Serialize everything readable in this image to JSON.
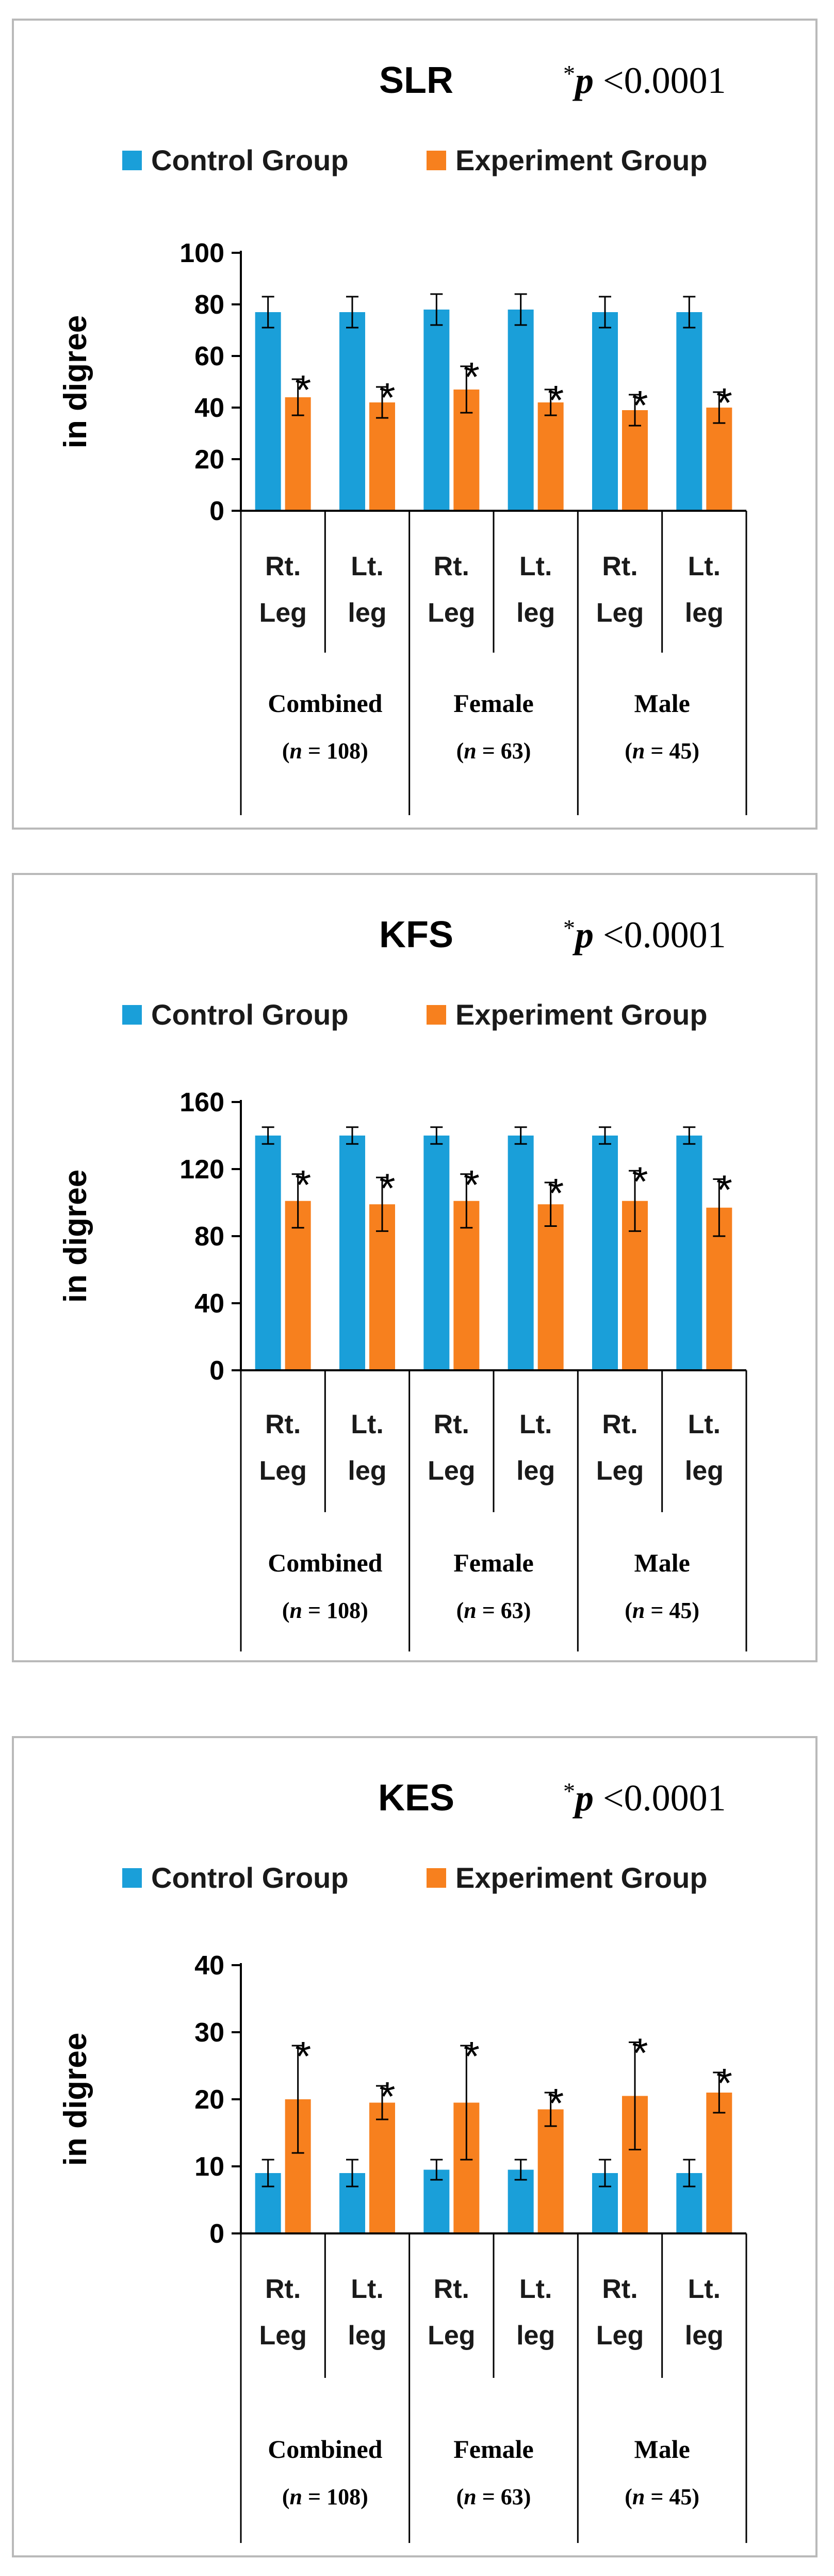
{
  "colors": {
    "control": "#1a9fd9",
    "experiment": "#f7801e",
    "axis": "#000000",
    "border": "#b9b9b9"
  },
  "chart_data": [
    {
      "type": "bar",
      "title": "SLR",
      "significance": {
        "star": "*",
        "p": "p",
        "op": "<",
        "value": "0.0001"
      },
      "ylabel": "in digree",
      "ylim": [
        0,
        100
      ],
      "yticks": [
        0,
        20,
        40,
        60,
        80,
        100
      ],
      "categories": [
        [
          "Rt.",
          "Leg"
        ],
        [
          "Lt.",
          "leg"
        ],
        [
          "Rt.",
          "Leg"
        ],
        [
          "Lt.",
          "leg"
        ],
        [
          "Rt.",
          "Leg"
        ],
        [
          "Lt.",
          "leg"
        ]
      ],
      "groups": [
        {
          "name": "Combined",
          "n_prefix": "(",
          "n_label": "n",
          "n_value": " = 108)"
        },
        {
          "name": "Female",
          "n_prefix": "(",
          "n_label": "n",
          "n_value": " = 63)"
        },
        {
          "name": "Male",
          "n_prefix": "(",
          "n_label": "n",
          "n_value": " = 45)"
        }
      ],
      "series": [
        {
          "name": "Control Group",
          "values": [
            77,
            77,
            78,
            78,
            77,
            77
          ],
          "errors": [
            6,
            6,
            6,
            6,
            6,
            6
          ]
        },
        {
          "name": "Experiment Group",
          "values": [
            44,
            42,
            47,
            42,
            39,
            40
          ],
          "errors": [
            7,
            6,
            9,
            5,
            6,
            6
          ]
        }
      ],
      "annotations": [
        "*",
        "*",
        "*",
        "*",
        "*",
        "*"
      ]
    },
    {
      "type": "bar",
      "title": "KFS",
      "significance": {
        "star": "*",
        "p": "p",
        "op": "<",
        "value": "0.0001"
      },
      "ylabel": "in digree",
      "ylim": [
        0,
        160
      ],
      "yticks": [
        0,
        40,
        80,
        120,
        160
      ],
      "categories": [
        [
          "Rt.",
          "Leg"
        ],
        [
          "Lt.",
          "leg"
        ],
        [
          "Rt.",
          "Leg"
        ],
        [
          "Lt.",
          "leg"
        ],
        [
          "Rt.",
          "Leg"
        ],
        [
          "Lt.",
          "leg"
        ]
      ],
      "groups": [
        {
          "name": "Combined",
          "n_prefix": "(",
          "n_label": "n",
          "n_value": " = 108)"
        },
        {
          "name": "Female",
          "n_prefix": "(",
          "n_label": "n",
          "n_value": " = 63)"
        },
        {
          "name": "Male",
          "n_prefix": "(",
          "n_label": "n",
          "n_value": " = 45)"
        }
      ],
      "series": [
        {
          "name": "Control Group",
          "values": [
            140,
            140,
            140,
            140,
            140,
            140
          ],
          "errors": [
            5,
            5,
            5,
            5,
            5,
            5
          ]
        },
        {
          "name": "Experiment Group",
          "values": [
            101,
            99,
            101,
            99,
            101,
            97
          ],
          "errors": [
            16,
            16,
            16,
            13,
            18,
            17
          ]
        }
      ],
      "annotations": [
        "*",
        "*",
        "*",
        "*",
        "*",
        "*"
      ]
    },
    {
      "type": "bar",
      "title": "KES",
      "significance": {
        "star": "*",
        "p": "p",
        "op": "<",
        "value": "0.0001"
      },
      "ylabel": "in digree",
      "ylim": [
        0,
        40
      ],
      "yticks": [
        0,
        10,
        20,
        30,
        40
      ],
      "categories": [
        [
          "Rt.",
          "Leg"
        ],
        [
          "Lt.",
          "leg"
        ],
        [
          "Rt.",
          "Leg"
        ],
        [
          "Lt.",
          "leg"
        ],
        [
          "Rt.",
          "Leg"
        ],
        [
          "Lt.",
          "leg"
        ]
      ],
      "groups": [
        {
          "name": "Combined",
          "n_prefix": "(",
          "n_label": "n",
          "n_value": " = 108)"
        },
        {
          "name": "Female",
          "n_prefix": "(",
          "n_label": "n",
          "n_value": " = 63)"
        },
        {
          "name": "Male",
          "n_prefix": "(",
          "n_label": "n",
          "n_value": " = 45)"
        }
      ],
      "series": [
        {
          "name": "Control Group",
          "values": [
            9,
            9,
            9.5,
            9.5,
            9,
            9
          ],
          "errors": [
            2,
            2,
            1.5,
            1.5,
            2,
            2
          ]
        },
        {
          "name": "Experiment Group",
          "values": [
            20,
            19.5,
            19.5,
            18.5,
            20.5,
            21
          ],
          "errors": [
            8,
            2.5,
            8.5,
            2.5,
            8,
            3
          ]
        }
      ],
      "annotations": [
        "*",
        "*",
        "*",
        "*",
        "*",
        "*"
      ]
    }
  ]
}
